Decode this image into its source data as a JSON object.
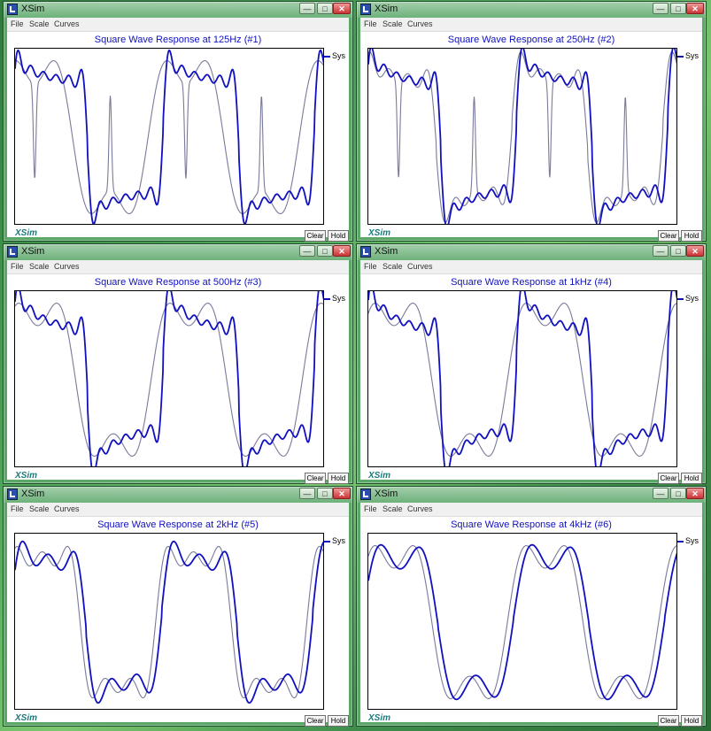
{
  "windows": [
    {
      "app_title": "XSim",
      "menu": [
        "File",
        "Scale",
        "Curves"
      ],
      "caption_buttons": [
        "minimize-icon",
        "maximize-icon",
        "close-icon"
      ],
      "legend": "Sys",
      "logo": "XSim",
      "buttons": {
        "clear": "Clear",
        "hold": "Hold"
      },
      "chart_data": {
        "type": "line",
        "title": "Square Wave Response at 125Hz (#1)",
        "freq_label": "125Hz",
        "series": [
          {
            "name": "Sys",
            "color": "#1010c0",
            "cycles": 2.05,
            "harmonics": 11,
            "droop": 0.42,
            "phase": 0.02
          },
          {
            "color": "#7a7a9a",
            "cycles": 2.05,
            "harmonics": 3,
            "droop": 0.0,
            "phase": 0.12,
            "spikes": true
          }
        ]
      }
    },
    {
      "app_title": "XSim",
      "menu": [
        "File",
        "Scale",
        "Curves"
      ],
      "caption_buttons": [
        "minimize-icon",
        "maximize-icon",
        "close-icon"
      ],
      "legend": "Sys",
      "logo": "XSim",
      "buttons": {
        "clear": "Clear",
        "hold": "Hold"
      },
      "chart_data": {
        "type": "line",
        "title": "Square Wave Response at 250Hz (#2)",
        "freq_label": "250Hz",
        "series": [
          {
            "name": "Sys",
            "color": "#1010c0",
            "cycles": 2.05,
            "harmonics": 11,
            "droop": 0.55,
            "phase": 0.02
          },
          {
            "color": "#7a7a9a",
            "cycles": 2.05,
            "harmonics": 7,
            "droop": 0.45,
            "phase": 0.05,
            "spikes": true
          }
        ]
      }
    },
    {
      "app_title": "XSim",
      "menu": [
        "File",
        "Scale",
        "Curves"
      ],
      "caption_buttons": [
        "minimize-icon",
        "maximize-icon",
        "close-icon"
      ],
      "legend": "Sys",
      "logo": "XSim",
      "buttons": {
        "clear": "Clear",
        "hold": "Hold"
      },
      "chart_data": {
        "type": "line",
        "title": "Square Wave Response at 500Hz (#3)",
        "freq_label": "500Hz",
        "series": [
          {
            "name": "Sys",
            "color": "#1010c0",
            "cycles": 2.05,
            "harmonics": 11,
            "droop": 0.7,
            "phase": 0.02
          },
          {
            "color": "#7a7a9a",
            "cycles": 2.05,
            "harmonics": 3,
            "droop": 0.0,
            "phase": 0.1
          }
        ]
      }
    },
    {
      "app_title": "XSim",
      "menu": [
        "File",
        "Scale",
        "Curves"
      ],
      "caption_buttons": [
        "minimize-icon",
        "maximize-icon",
        "close-icon"
      ],
      "legend": "Sys",
      "logo": "XSim",
      "buttons": {
        "clear": "Clear",
        "hold": "Hold"
      },
      "chart_data": {
        "type": "line",
        "title": "Square Wave Response at 1kHz (#4)",
        "freq_label": "1kHz",
        "series": [
          {
            "name": "Sys",
            "color": "#1010c0",
            "cycles": 2.05,
            "harmonics": 11,
            "droop": 0.75,
            "phase": 0.02
          },
          {
            "color": "#7a7a9a",
            "cycles": 2.05,
            "harmonics": 3,
            "droop": 0.0,
            "phase": 0.08
          }
        ]
      }
    },
    {
      "app_title": "XSim",
      "menu": [
        "File",
        "Scale",
        "Curves"
      ],
      "caption_buttons": [
        "minimize-icon",
        "maximize-icon",
        "close-icon"
      ],
      "legend": "Sys",
      "logo": "XSim",
      "buttons": {
        "clear": "Clear",
        "hold": "Hold"
      },
      "chart_data": {
        "type": "line",
        "title": "Square Wave Response at 2kHz (#5)",
        "freq_label": "2kHz",
        "series": [
          {
            "name": "Sys",
            "color": "#1010c0",
            "cycles": 2.05,
            "harmonics": 5,
            "droop": 0.3,
            "phase": 0.03
          },
          {
            "color": "#7a7a9a",
            "cycles": 2.05,
            "harmonics": 5,
            "droop": 0.0,
            "phase": 0.07
          }
        ]
      }
    },
    {
      "app_title": "XSim",
      "menu": [
        "File",
        "Scale",
        "Curves"
      ],
      "caption_buttons": [
        "minimize-icon",
        "maximize-icon",
        "close-icon"
      ],
      "legend": "Sys",
      "logo": "XSim",
      "buttons": {
        "clear": "Clear",
        "hold": "Hold"
      },
      "chart_data": {
        "type": "line",
        "title": "Square Wave Response at 4kHz (#6)",
        "freq_label": "4kHz",
        "series": [
          {
            "name": "Sys",
            "color": "#1010c0",
            "cycles": 2.05,
            "harmonics": 3,
            "droop": 0.1,
            "phase": 0.04
          },
          {
            "color": "#7a7a9a",
            "cycles": 2.05,
            "harmonics": 3,
            "droop": 0.0,
            "phase": 0.08
          }
        ]
      }
    }
  ]
}
